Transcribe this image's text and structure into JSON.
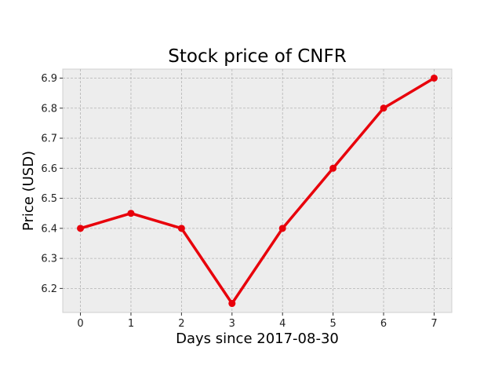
{
  "chart_data": {
    "type": "line",
    "title": "Stock price of CNFR",
    "xlabel": "Days since 2017-08-30",
    "ylabel": "Price (USD)",
    "x": [
      0,
      1,
      2,
      3,
      4,
      5,
      6,
      7
    ],
    "series": [
      {
        "values": [
          6.4,
          6.45,
          6.4,
          6.15,
          6.4,
          6.6,
          6.8,
          6.9
        ],
        "color": "#e8000b"
      }
    ],
    "xlim": [
      -0.35,
      7.35
    ],
    "ylim": [
      6.12,
      6.93
    ],
    "xticks": [
      "0",
      "1",
      "2",
      "3",
      "4",
      "5",
      "6",
      "7"
    ],
    "yticks": [
      "6.2",
      "6.3",
      "6.4",
      "6.5",
      "6.6",
      "6.7",
      "6.8",
      "6.9"
    ],
    "grid": true,
    "legend": "none",
    "background_color": "#ededed",
    "grid_color": "#b3b3b3"
  }
}
